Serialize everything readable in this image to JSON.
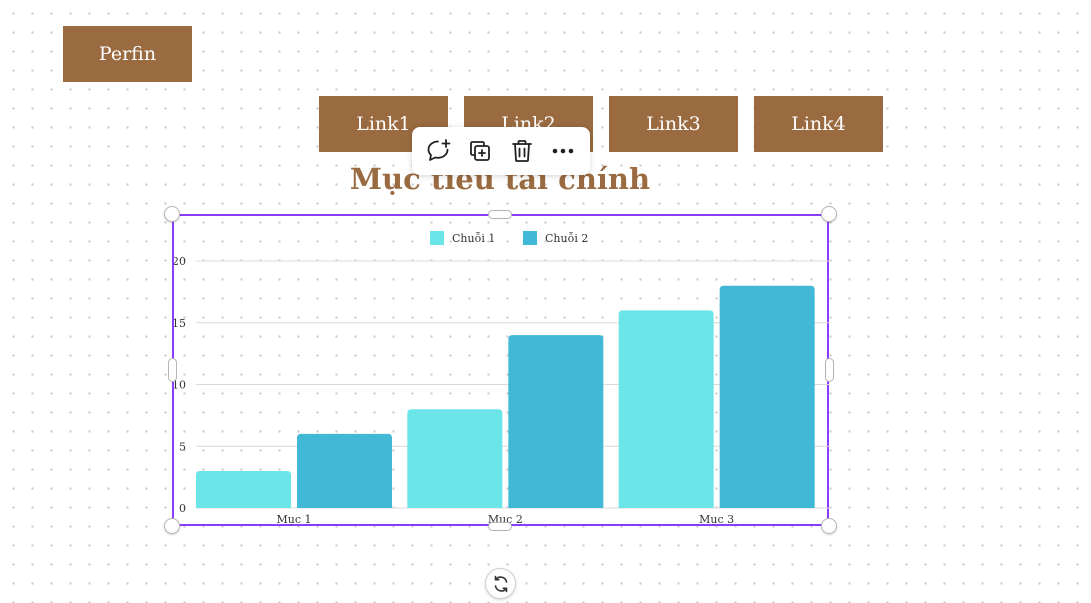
{
  "nav": {
    "logo_label": "Perfin",
    "links": [
      "Link1",
      "Link2",
      "Link3",
      "Link4"
    ]
  },
  "page": {
    "title": "Mục tiêu tài chính"
  },
  "toolbar": {
    "icons": [
      "comment-add-icon",
      "duplicate-icon",
      "trash-icon",
      "more-icon"
    ]
  },
  "colors": {
    "brand_brown": "#9a6a40",
    "selection": "#8b3dff",
    "series1": "#6ce5e8",
    "series2": "#41b8d5"
  },
  "chart_data": {
    "type": "bar",
    "title": "",
    "xlabel": "",
    "ylabel": "",
    "categories": [
      "Mục 1",
      "Mục 2",
      "Mục 3"
    ],
    "series": [
      {
        "name": "Chuỗi 1",
        "values": [
          3,
          8,
          16
        ],
        "color": "#6ce5e8"
      },
      {
        "name": "Chuỗi 2",
        "values": [
          6,
          14,
          18
        ],
        "color": "#41b8d5"
      }
    ],
    "ylim": [
      0,
      20
    ],
    "yticks": [
      "0",
      "5",
      "10",
      "15",
      "20"
    ],
    "legend": "top-center",
    "grid": true
  }
}
